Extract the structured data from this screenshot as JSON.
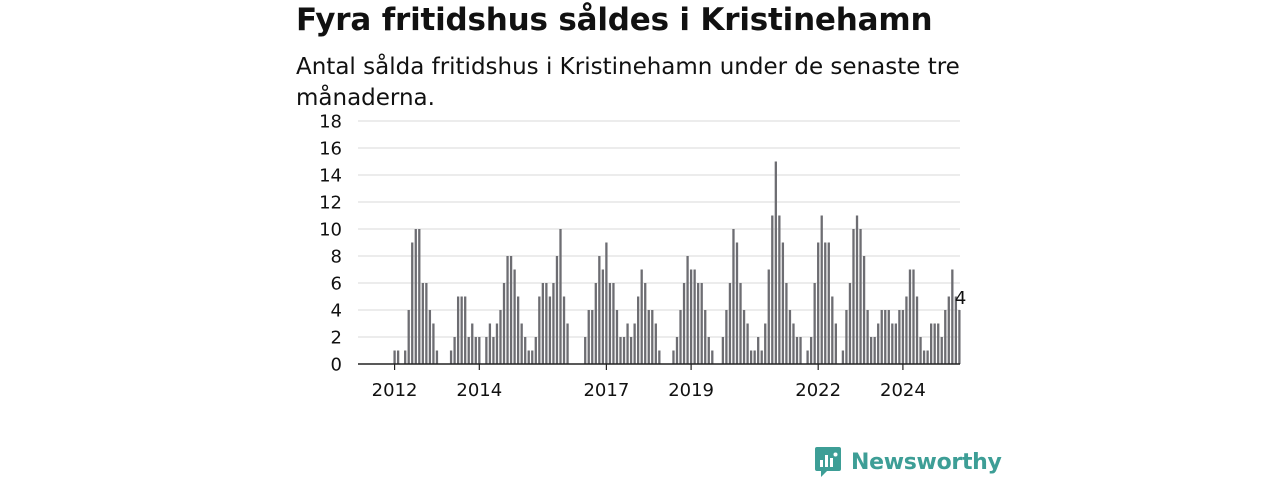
{
  "header": {
    "title": "Fyra fritidshus såldes i Kristinehamn",
    "subtitle": "Antal sålda fritidshus i Kristinehamn under de senaste tre månaderna."
  },
  "brand": {
    "name": "Newsworthy",
    "icon": "newsworthy-logo-icon",
    "color": "#3d9e96"
  },
  "chart_data": {
    "type": "bar",
    "ylim": [
      0,
      18
    ],
    "yticks": [
      0,
      2,
      4,
      6,
      8,
      10,
      12,
      14,
      16,
      18
    ],
    "grid": true,
    "xtick_labels": [
      {
        "label": "2012",
        "month_index": 3
      },
      {
        "label": "2014",
        "month_index": 27
      },
      {
        "label": "2017",
        "month_index": 63
      },
      {
        "label": "2019",
        "month_index": 87
      },
      {
        "label": "2022",
        "month_index": 123
      },
      {
        "label": "2024",
        "month_index": 147
      }
    ],
    "values": [
      0,
      0,
      0,
      1,
      1,
      0,
      1,
      4,
      9,
      10,
      10,
      6,
      6,
      4,
      3,
      1,
      0,
      0,
      0,
      1,
      2,
      5,
      5,
      5,
      2,
      3,
      2,
      2,
      0,
      2,
      3,
      2,
      3,
      4,
      6,
      8,
      8,
      7,
      5,
      3,
      2,
      1,
      1,
      2,
      5,
      6,
      6,
      5,
      6,
      8,
      10,
      5,
      3,
      0,
      0,
      0,
      0,
      2,
      4,
      4,
      6,
      8,
      7,
      9,
      6,
      6,
      4,
      2,
      2,
      3,
      2,
      3,
      5,
      7,
      6,
      4,
      4,
      3,
      1,
      0,
      0,
      0,
      1,
      2,
      4,
      6,
      8,
      7,
      7,
      6,
      6,
      4,
      2,
      1,
      0,
      0,
      2,
      4,
      6,
      10,
      9,
      6,
      4,
      3,
      1,
      1,
      2,
      1,
      3,
      7,
      11,
      15,
      11,
      9,
      6,
      4,
      3,
      2,
      2,
      0,
      1,
      2,
      6,
      9,
      11,
      9,
      9,
      5,
      3,
      0,
      1,
      4,
      6,
      10,
      11,
      10,
      8,
      4,
      2,
      2,
      3,
      4,
      4,
      4,
      3,
      3,
      4,
      4,
      5,
      7,
      7,
      5,
      2,
      1,
      1,
      3,
      3,
      3,
      2,
      4,
      5,
      7,
      5,
      4
    ],
    "highlight": {
      "index": 164,
      "value": 4,
      "label": "4",
      "color": "#1d9a8e"
    },
    "bar_color": "#6d6d72"
  }
}
